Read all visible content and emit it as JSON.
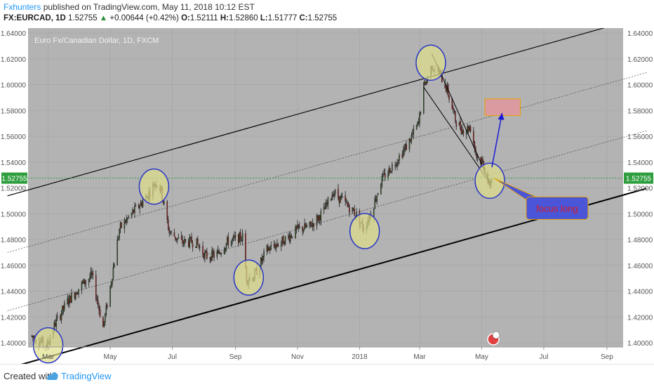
{
  "header": {
    "author": "Fxhunters",
    "published_text": "published on TradingView.com, May 11, 2018 10:12 EST",
    "symbol": "FX:EURCAD, 1D",
    "last": "1.52755",
    "change": "+0.00644 (+0.42%)",
    "open_label": "O:",
    "open": "1.52111",
    "high_label": "H:",
    "high": "1.52860",
    "low_label": "L:",
    "low": "1.51777",
    "close_label": "C:",
    "close": "1.52755"
  },
  "footer": {
    "created_with": "Created with",
    "brand": "TradingView"
  },
  "colors": {
    "plot_bg": "#b3b3b3",
    "up_candle": "#3a5a2a",
    "down_candle": "#9e1b1b",
    "highlight_fill": "#e0e08c",
    "highlight_stroke": "#2a36c8",
    "price_label": "#2e9e3e",
    "target_box": "#d99aa0",
    "target_border": "#e6a400",
    "callout_fill": "#4a55d8",
    "callout_text": "#d81b24"
  },
  "chart_data": {
    "type": "candlestick",
    "title": "Euro Fx/Canadian Dollar, 1D, FXCM",
    "y_ticks": [
      "1.40000",
      "1.42000",
      "1.44000",
      "1.46000",
      "1.48000",
      "1.50000",
      "1.52000",
      "1.54000",
      "1.56000",
      "1.58000",
      "1.60000",
      "1.62000",
      "1.64000"
    ],
    "x_ticks": [
      "Mar",
      "May",
      "Jul",
      "Sep",
      "Nov",
      "2018",
      "Mar",
      "May",
      "Jul",
      "Sep"
    ],
    "ylim": [
      1.398,
      1.643
    ],
    "current_price": "1.52755",
    "price_path": [
      [
        "2017-02-13",
        1.405
      ],
      [
        "2017-02-28",
        1.398
      ],
      [
        "2017-03-08",
        1.415
      ],
      [
        "2017-03-20",
        1.432
      ],
      [
        "2017-04-03",
        1.445
      ],
      [
        "2017-04-13",
        1.452
      ],
      [
        "2017-04-24",
        1.412
      ],
      [
        "2017-05-02",
        1.448
      ],
      [
        "2017-05-10",
        1.488
      ],
      [
        "2017-05-22",
        1.5
      ],
      [
        "2017-06-05",
        1.512
      ],
      [
        "2017-06-15",
        1.525
      ],
      [
        "2017-06-20",
        1.518
      ],
      [
        "2017-06-28",
        1.486
      ],
      [
        "2017-07-10",
        1.478
      ],
      [
        "2017-07-24",
        1.478
      ],
      [
        "2017-08-03",
        1.467
      ],
      [
        "2017-08-14",
        1.468
      ],
      [
        "2017-08-24",
        1.478
      ],
      [
        "2017-09-08",
        1.482
      ],
      [
        "2017-09-12",
        1.45
      ],
      [
        "2017-09-19",
        1.451
      ],
      [
        "2017-10-02",
        1.472
      ],
      [
        "2017-10-16",
        1.478
      ],
      [
        "2017-11-02",
        1.488
      ],
      [
        "2017-11-13",
        1.49
      ],
      [
        "2017-11-27",
        1.502
      ],
      [
        "2017-12-06",
        1.517
      ],
      [
        "2017-12-18",
        1.508
      ],
      [
        "2017-12-28",
        1.5
      ],
      [
        "2018-01-05",
        1.489
      ],
      [
        "2018-01-12",
        1.5
      ],
      [
        "2018-01-22",
        1.525
      ],
      [
        "2018-02-05",
        1.54
      ],
      [
        "2018-02-16",
        1.552
      ],
      [
        "2018-02-28",
        1.57
      ],
      [
        "2018-03-05",
        1.598
      ],
      [
        "2018-03-13",
        1.615
      ],
      [
        "2018-03-21",
        1.608
      ],
      [
        "2018-03-28",
        1.596
      ],
      [
        "2018-04-05",
        1.573
      ],
      [
        "2018-04-12",
        1.565
      ],
      [
        "2018-04-20",
        1.567
      ],
      [
        "2018-04-26",
        1.545
      ],
      [
        "2018-05-03",
        1.538
      ],
      [
        "2018-05-08",
        1.521
      ],
      [
        "2018-05-11",
        1.5275
      ]
    ],
    "channel_label_price": "1.52755",
    "target_zone": {
      "from": "2018-05-11",
      "to": "2018-06-01",
      "low": 1.576,
      "high": 1.589
    },
    "annotation": "focus long",
    "highlight_circles": [
      {
        "date": "2017-03-01",
        "price": 1.398
      },
      {
        "date": "2017-06-13",
        "price": 1.521
      },
      {
        "date": "2017-09-14",
        "price": 1.4505
      },
      {
        "date": "2018-01-06",
        "price": 1.4865
      },
      {
        "date": "2018-03-12",
        "price": 1.617
      },
      {
        "date": "2018-05-09",
        "price": 1.5255
      }
    ]
  }
}
